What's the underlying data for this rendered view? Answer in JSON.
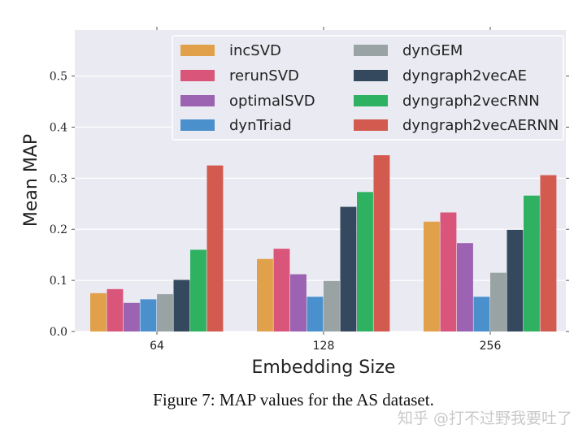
{
  "chart_data": {
    "type": "bar",
    "xlabel": "Embedding Size",
    "ylabel": "Mean MAP",
    "categories": [
      "64",
      "128",
      "256"
    ],
    "ylim": [
      0,
      0.59
    ],
    "yticks": [
      "0.0",
      "0.1",
      "0.2",
      "0.3",
      "0.4",
      "0.5"
    ],
    "grid": true,
    "legend_position": "top-right",
    "series": [
      {
        "name": "incSVD",
        "color": "#E1A14A",
        "values": [
          0.075,
          0.142,
          0.215
        ]
      },
      {
        "name": "rerunSVD",
        "color": "#D9567A",
        "values": [
          0.083,
          0.162,
          0.233
        ]
      },
      {
        "name": "optimalSVD",
        "color": "#9B63B1",
        "values": [
          0.056,
          0.112,
          0.173
        ]
      },
      {
        "name": "dynTriad",
        "color": "#4A90CC",
        "values": [
          0.063,
          0.068,
          0.068
        ]
      },
      {
        "name": "dynGEM",
        "color": "#99A3A4",
        "values": [
          0.073,
          0.099,
          0.115
        ]
      },
      {
        "name": "dyngraph2vecAE",
        "color": "#34495E",
        "values": [
          0.101,
          0.244,
          0.199
        ]
      },
      {
        "name": "dyngraph2vecRNN",
        "color": "#2EB262",
        "values": [
          0.16,
          0.273,
          0.266
        ]
      },
      {
        "name": "dyngraph2vecAERNN",
        "color": "#D35A4E",
        "values": [
          0.325,
          0.345,
          0.306
        ]
      }
    ]
  },
  "caption": "Figure 7: MAP values for the AS dataset.",
  "watermark": "知乎 @打不过野我要吐了"
}
